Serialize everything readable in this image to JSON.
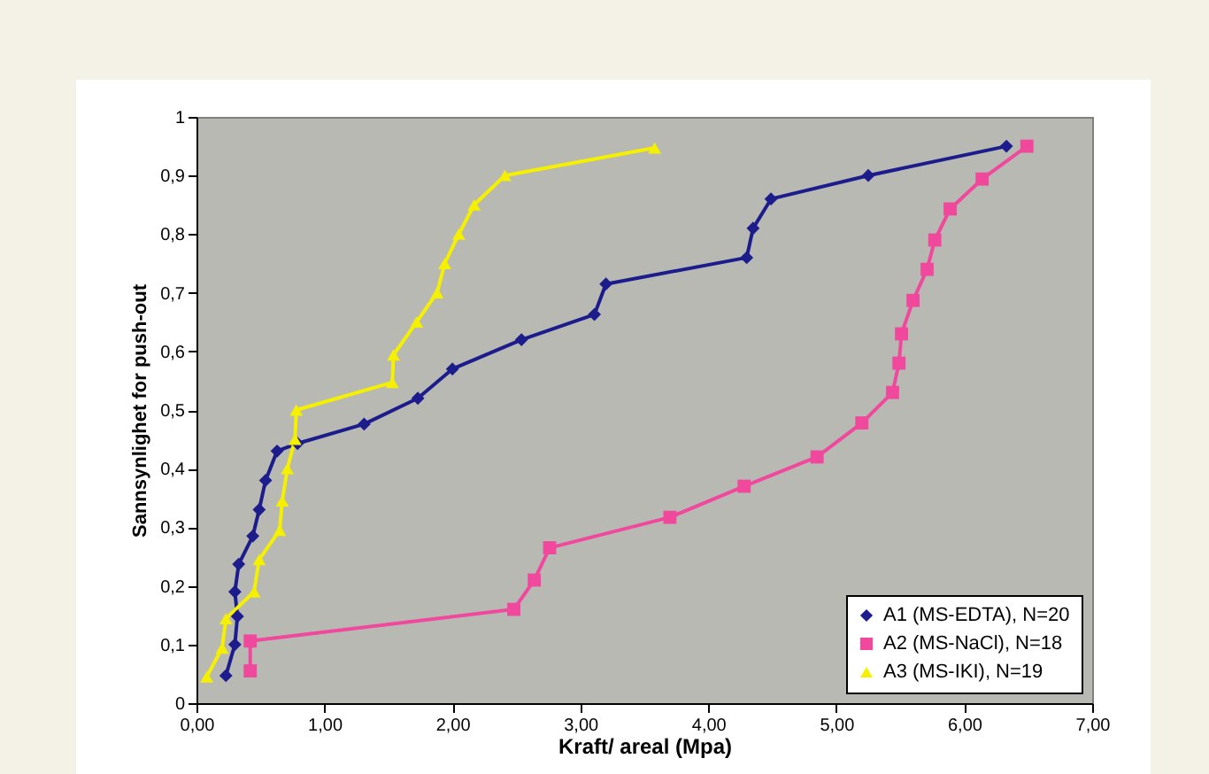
{
  "chart_data": {
    "type": "line",
    "xlabel": "Kraft/ areal (Mpa)",
    "ylabel": "Sannsynlighet for push-out",
    "xlim": [
      0,
      7
    ],
    "ylim": [
      0,
      1
    ],
    "xticks": [
      {
        "value": 0,
        "label": "0,00"
      },
      {
        "value": 1,
        "label": "1,00"
      },
      {
        "value": 2,
        "label": "2,00"
      },
      {
        "value": 3,
        "label": "3,00"
      },
      {
        "value": 4,
        "label": "4,00"
      },
      {
        "value": 5,
        "label": "5,00"
      },
      {
        "value": 6,
        "label": "6,00"
      },
      {
        "value": 7,
        "label": "7,00"
      }
    ],
    "yticks": [
      0,
      {
        "value": 0.1,
        "label": "0,1"
      },
      {
        "value": 0.2,
        "label": "0,2"
      },
      {
        "value": 0.3,
        "label": "0,3"
      },
      {
        "value": 0.4,
        "label": "0,4"
      },
      {
        "value": 0.5,
        "label": "0,5"
      },
      {
        "value": 0.6,
        "label": "0,6"
      },
      {
        "value": 0.7,
        "label": "0,7"
      },
      {
        "value": 0.8,
        "label": "0,8"
      },
      {
        "value": 0.9,
        "label": "0,9"
      },
      1
    ],
    "grid": false,
    "legend": "bottom right",
    "line_style": "solid",
    "series": [
      {
        "name": "A1 (MS-EDTA), N=20",
        "color": "#1c1c8c",
        "marker": "diamond",
        "x": [
          0.23,
          0.3,
          0.32,
          0.3,
          0.33,
          0.44,
          0.49,
          0.54,
          0.63,
          0.79,
          1.31,
          1.73,
          2.0,
          2.54,
          3.11,
          3.2,
          4.3,
          4.35,
          4.49,
          5.25,
          6.33
        ],
        "values": [
          0.047,
          0.1,
          0.148,
          0.19,
          0.237,
          0.285,
          0.33,
          0.38,
          0.43,
          0.443,
          0.476,
          0.52,
          0.57,
          0.62,
          0.663,
          0.715,
          0.76,
          0.81,
          0.86,
          0.9,
          0.95
        ]
      },
      {
        "name": "A2 (MS-NaCl), N=18",
        "color": "#f0489c",
        "marker": "square",
        "x": [
          0.42,
          0.42,
          2.48,
          2.64,
          2.76,
          3.7,
          4.28,
          4.85,
          5.2,
          5.44,
          5.49,
          5.51,
          5.6,
          5.71,
          5.77,
          5.89,
          6.14,
          6.49
        ],
        "values": [
          0.055,
          0.106,
          0.16,
          0.21,
          0.265,
          0.317,
          0.37,
          0.42,
          0.478,
          0.53,
          0.58,
          0.63,
          0.687,
          0.74,
          0.79,
          0.843,
          0.894,
          0.95
        ]
      },
      {
        "name": "A3 (MS-IKI), N=19",
        "color": "#f5f000",
        "marker": "triangle",
        "x": [
          0.08,
          0.2,
          0.23,
          0.45,
          0.49,
          0.65,
          0.67,
          0.71,
          0.77,
          0.78,
          1.53,
          1.54,
          1.72,
          1.88,
          1.94,
          2.05,
          2.17,
          2.41,
          3.58
        ],
        "values": [
          0.045,
          0.094,
          0.144,
          0.19,
          0.245,
          0.295,
          0.345,
          0.4,
          0.45,
          0.5,
          0.547,
          0.594,
          0.65,
          0.7,
          0.75,
          0.8,
          0.85,
          0.9,
          0.947
        ]
      }
    ]
  }
}
